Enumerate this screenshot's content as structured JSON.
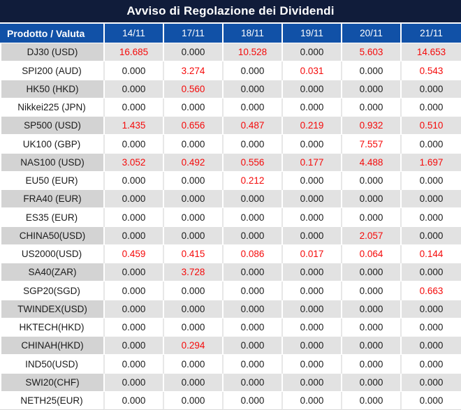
{
  "chart_data": {
    "type": "table",
    "title": "Avviso di Regolazione dei Dividendi",
    "product_header": "Prodotto / Valuta",
    "date_headers": [
      "14/11",
      "17/11",
      "18/11",
      "19/11",
      "20/11",
      "21/11"
    ],
    "rows": [
      {
        "product": "DJ30 (USD)",
        "values": [
          "16.685",
          "0.000",
          "10.528",
          "0.000",
          "5.603",
          "14.653"
        ],
        "red": [
          true,
          false,
          true,
          false,
          true,
          true
        ]
      },
      {
        "product": "SPI200 (AUD)",
        "values": [
          "0.000",
          "3.274",
          "0.000",
          "0.031",
          "0.000",
          "0.543"
        ],
        "red": [
          false,
          true,
          false,
          true,
          false,
          true
        ]
      },
      {
        "product": "HK50 (HKD)",
        "values": [
          "0.000",
          "0.560",
          "0.000",
          "0.000",
          "0.000",
          "0.000"
        ],
        "red": [
          false,
          true,
          false,
          false,
          false,
          false
        ]
      },
      {
        "product": "Nikkei225 (JPN)",
        "values": [
          "0.000",
          "0.000",
          "0.000",
          "0.000",
          "0.000",
          "0.000"
        ],
        "red": [
          false,
          false,
          false,
          false,
          false,
          false
        ]
      },
      {
        "product": "SP500 (USD)",
        "values": [
          "1.435",
          "0.656",
          "0.487",
          "0.219",
          "0.932",
          "0.510"
        ],
        "red": [
          true,
          true,
          true,
          true,
          true,
          true
        ]
      },
      {
        "product": "UK100 (GBP)",
        "values": [
          "0.000",
          "0.000",
          "0.000",
          "0.000",
          "7.557",
          "0.000"
        ],
        "red": [
          false,
          false,
          false,
          false,
          true,
          false
        ]
      },
      {
        "product": "NAS100 (USD)",
        "values": [
          "3.052",
          "0.492",
          "0.556",
          "0.177",
          "4.488",
          "1.697"
        ],
        "red": [
          true,
          true,
          true,
          true,
          true,
          true
        ]
      },
      {
        "product": "EU50 (EUR)",
        "values": [
          "0.000",
          "0.000",
          "0.212",
          "0.000",
          "0.000",
          "0.000"
        ],
        "red": [
          false,
          false,
          true,
          false,
          false,
          false
        ]
      },
      {
        "product": "FRA40 (EUR)",
        "values": [
          "0.000",
          "0.000",
          "0.000",
          "0.000",
          "0.000",
          "0.000"
        ],
        "red": [
          false,
          false,
          false,
          false,
          false,
          false
        ]
      },
      {
        "product": "ES35 (EUR)",
        "values": [
          "0.000",
          "0.000",
          "0.000",
          "0.000",
          "0.000",
          "0.000"
        ],
        "red": [
          false,
          false,
          false,
          false,
          false,
          false
        ]
      },
      {
        "product": "CHINA50(USD)",
        "values": [
          "0.000",
          "0.000",
          "0.000",
          "0.000",
          "2.057",
          "0.000"
        ],
        "red": [
          false,
          false,
          false,
          false,
          true,
          false
        ]
      },
      {
        "product": "US2000(USD)",
        "values": [
          "0.459",
          "0.415",
          "0.086",
          "0.017",
          "0.064",
          "0.144"
        ],
        "red": [
          true,
          true,
          true,
          true,
          true,
          true
        ]
      },
      {
        "product": "SA40(ZAR)",
        "values": [
          "0.000",
          "3.728",
          "0.000",
          "0.000",
          "0.000",
          "0.000"
        ],
        "red": [
          false,
          true,
          false,
          false,
          false,
          false
        ]
      },
      {
        "product": "SGP20(SGD)",
        "values": [
          "0.000",
          "0.000",
          "0.000",
          "0.000",
          "0.000",
          "0.663"
        ],
        "red": [
          false,
          false,
          false,
          false,
          false,
          true
        ]
      },
      {
        "product": "TWINDEX(USD)",
        "values": [
          "0.000",
          "0.000",
          "0.000",
          "0.000",
          "0.000",
          "0.000"
        ],
        "red": [
          false,
          false,
          false,
          false,
          false,
          false
        ]
      },
      {
        "product": "HKTECH(HKD)",
        "values": [
          "0.000",
          "0.000",
          "0.000",
          "0.000",
          "0.000",
          "0.000"
        ],
        "red": [
          false,
          false,
          false,
          false,
          false,
          false
        ]
      },
      {
        "product": "CHINAH(HKD)",
        "values": [
          "0.000",
          "0.294",
          "0.000",
          "0.000",
          "0.000",
          "0.000"
        ],
        "red": [
          false,
          true,
          false,
          false,
          false,
          false
        ]
      },
      {
        "product": "IND50(USD)",
        "values": [
          "0.000",
          "0.000",
          "0.000",
          "0.000",
          "0.000",
          "0.000"
        ],
        "red": [
          false,
          false,
          false,
          false,
          false,
          false
        ]
      },
      {
        "product": "SWI20(CHF)",
        "values": [
          "0.000",
          "0.000",
          "0.000",
          "0.000",
          "0.000",
          "0.000"
        ],
        "red": [
          false,
          false,
          false,
          false,
          false,
          false
        ]
      },
      {
        "product": "NETH25(EUR)",
        "values": [
          "0.000",
          "0.000",
          "0.000",
          "0.000",
          "0.000",
          "0.000"
        ],
        "red": [
          false,
          false,
          false,
          false,
          false,
          false
        ]
      }
    ]
  },
  "colors": {
    "title_bg": "#101c3a",
    "header_bg": "#1151a7",
    "gray_product": "#d3d3d3",
    "gray_value": "#e2e2e2",
    "red": "#f50a0a",
    "text_dark": "#1b1b1b"
  }
}
